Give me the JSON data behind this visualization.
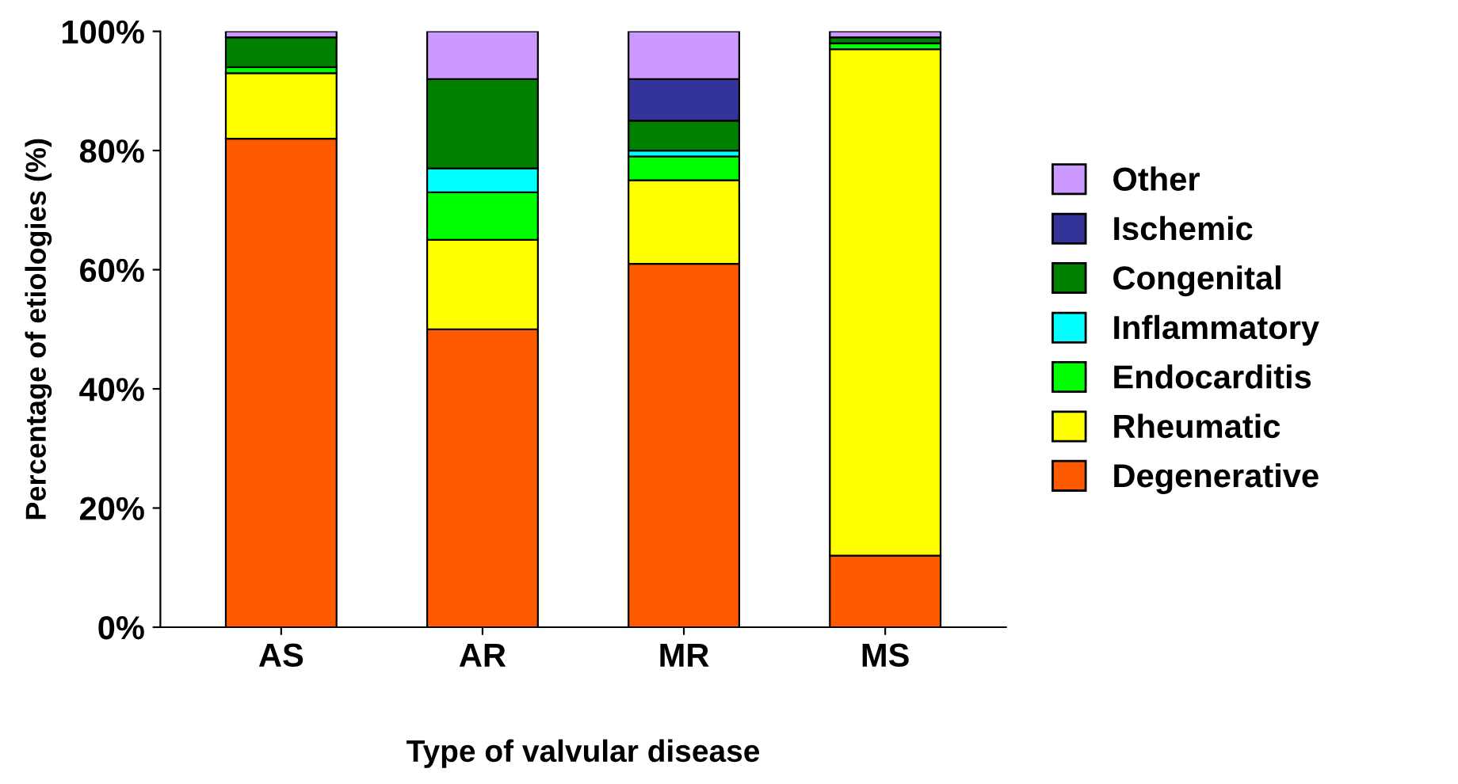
{
  "chart_data": {
    "type": "bar",
    "stacked": true,
    "xlabel": "Type of valvular disease",
    "ylabel": "Percentage of etiologies (%)",
    "categories": [
      "AS",
      "AR",
      "MR",
      "MS"
    ],
    "series": [
      {
        "name": "Degenerative",
        "color": "#ff5a00",
        "values": [
          82,
          50,
          61,
          12
        ]
      },
      {
        "name": "Rheumatic",
        "color": "#ffff00",
        "values": [
          11,
          15,
          14,
          85
        ]
      },
      {
        "name": "Endocarditis",
        "color": "#00ff00",
        "values": [
          1,
          8,
          4,
          1
        ]
      },
      {
        "name": "Inflammatory",
        "color": "#00ffff",
        "values": [
          0,
          4,
          1,
          0
        ]
      },
      {
        "name": "Congenital",
        "color": "#008000",
        "values": [
          5,
          15,
          5,
          1
        ]
      },
      {
        "name": "Ischemic",
        "color": "#333399",
        "values": [
          0,
          0,
          7,
          0
        ]
      },
      {
        "name": "Other",
        "color": "#cc99ff",
        "values": [
          1,
          8,
          8,
          1
        ]
      }
    ],
    "ylim": [
      0,
      100
    ],
    "yticks": [
      {
        "value": 0,
        "label": "0%"
      },
      {
        "value": 20,
        "label": "20%"
      },
      {
        "value": 40,
        "label": "40%"
      },
      {
        "value": 60,
        "label": "60%"
      },
      {
        "value": 80,
        "label": "80%"
      },
      {
        "value": 100,
        "label": "100%"
      }
    ],
    "grid": false,
    "legend": "right"
  }
}
